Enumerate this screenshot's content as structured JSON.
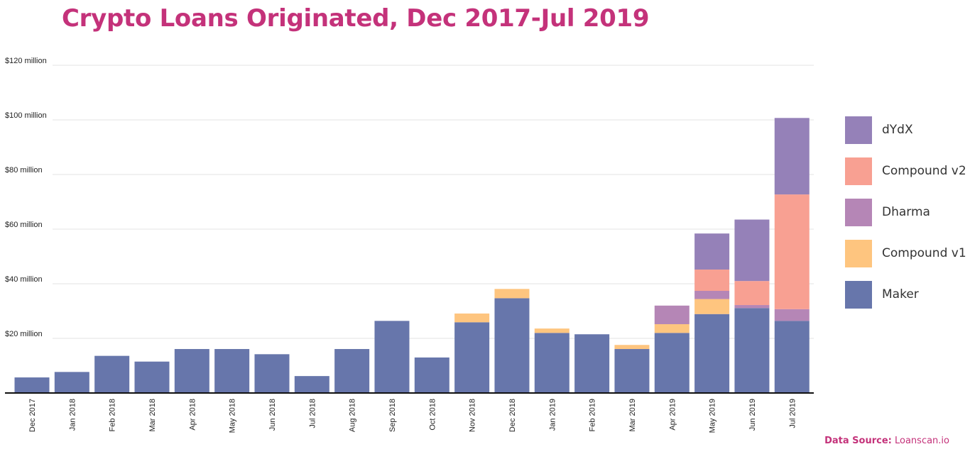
{
  "chart_data": {
    "type": "bar",
    "stacked": true,
    "title": "Crypto Loans Originated, Dec 2017-Jul 2019",
    "categories": [
      "Dec 2017",
      "Jan 2018",
      "Feb 2018",
      "Mar 2018",
      "Apr 2018",
      "May 2018",
      "Jun 2018",
      "Jul 2018",
      "Aug 2018",
      "Sep 2018",
      "Oct 2018",
      "Nov 2018",
      "Dec 2018",
      "Jan 2019",
      "Feb 2019",
      "Mar 2019",
      "Apr 2019",
      "May 2019",
      "Jun 2019",
      "Jul 2019"
    ],
    "series": [
      {
        "name": "Maker",
        "color": "#6776ab",
        "values": [
          5.7,
          7.7,
          13.6,
          11.5,
          16.1,
          16.1,
          14.2,
          6.2,
          16.1,
          26.4,
          13.0,
          25.9,
          34.7,
          22.0,
          21.5,
          16.1,
          22.0,
          28.9,
          31.1,
          26.4
        ]
      },
      {
        "name": "Compound v1",
        "color": "#fec57f",
        "values": [
          0,
          0,
          0,
          0,
          0,
          0,
          0,
          0,
          0,
          0,
          0,
          3.2,
          3.4,
          1.6,
          0,
          1.5,
          3.2,
          5.5,
          0,
          0
        ]
      },
      {
        "name": "Dharma",
        "color": "#b586b6",
        "values": [
          0,
          0,
          0,
          0,
          0,
          0,
          0,
          0,
          0,
          0,
          0,
          0,
          0,
          0,
          0,
          0,
          6.8,
          3.0,
          1.1,
          4.3
        ]
      },
      {
        "name": "Compound v2",
        "color": "#f8a092",
        "values": [
          0,
          0,
          0,
          0,
          0,
          0,
          0,
          0,
          0,
          0,
          0,
          0,
          0,
          0,
          0,
          0,
          0,
          7.8,
          8.8,
          42.0
        ]
      },
      {
        "name": "dYdX",
        "color": "#9581b8",
        "values": [
          0,
          0,
          0,
          0,
          0,
          0,
          0,
          0,
          0,
          0,
          0,
          0,
          0,
          0,
          0,
          0,
          0,
          13.2,
          22.5,
          28.0
        ]
      }
    ],
    "yticks": [
      20,
      40,
      60,
      80,
      100,
      120
    ],
    "ytick_labels": [
      "$20 million",
      "$40 million",
      "$60 million",
      "$80 million",
      "$100 million",
      "$120 million"
    ],
    "ylim": [
      0,
      120
    ],
    "grid": true,
    "legend_position": "right",
    "legend_order": [
      "dYdX",
      "Compound v2",
      "Dharma",
      "Compound v1",
      "Maker"
    ]
  },
  "source": {
    "label": "Data Source:",
    "value": "Loanscan.io"
  }
}
